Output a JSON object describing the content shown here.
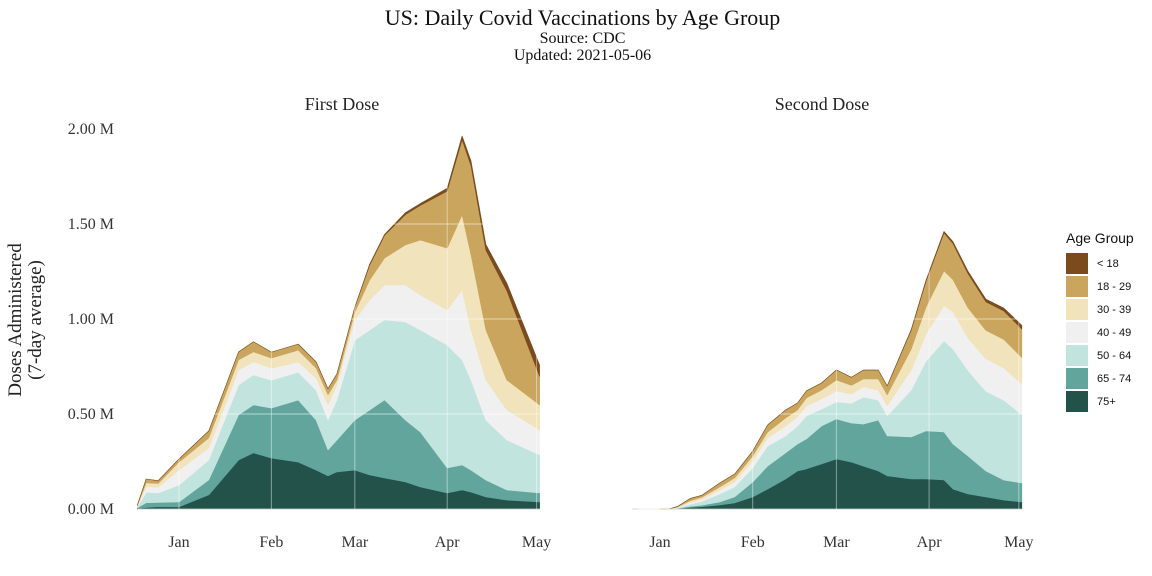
{
  "chart_data": {
    "type": "area",
    "stacked": true,
    "title": "US: Daily Covid Vaccinations by Age Group",
    "subtitle": [
      "Source: CDC",
      "Updated: 2021-05-06"
    ],
    "ylabel": [
      "Doses Administered",
      "(7-day average)"
    ],
    "xlabel": "",
    "ylim": [
      0,
      2000000
    ],
    "yticks": [
      {
        "value": 0,
        "label": "0.00 M"
      },
      {
        "value": 500000,
        "label": "0.50 M"
      },
      {
        "value": 1000000,
        "label": "1.00 M"
      },
      {
        "value": 1500000,
        "label": "1.50 M"
      },
      {
        "value": 2000000,
        "label": "2.00 M"
      }
    ],
    "xticks": [
      {
        "date": "2021-01-01",
        "label": "Jan"
      },
      {
        "date": "2021-02-01",
        "label": "Feb"
      },
      {
        "date": "2021-03-01",
        "label": "Mar"
      },
      {
        "date": "2021-04-01",
        "label": "Apr"
      },
      {
        "date": "2021-05-01",
        "label": "May"
      }
    ],
    "grid": true,
    "legend": {
      "title": "Age Group",
      "position": "right",
      "entries": [
        {
          "name": "< 18",
          "color": "#7b4a1d"
        },
        {
          "name": "18 - 29",
          "color": "#caa55e"
        },
        {
          "name": "30 - 39",
          "color": "#f1e3bc"
        },
        {
          "name": "40 - 49",
          "color": "#f0f0f0"
        },
        {
          "name": "50 - 64",
          "color": "#c2e4df"
        },
        {
          "name": "65 - 74",
          "color": "#62a59d"
        },
        {
          "name": "75+",
          "color": "#23524a"
        }
      ]
    },
    "series_order_bottom_to_top": [
      "75+",
      "65 - 74",
      "50 - 64",
      "40 - 49",
      "30 - 39",
      "18 - 29",
      "< 18"
    ],
    "panels": [
      {
        "title": "First Dose",
        "dates": [
          "2020-12-18",
          "2020-12-21",
          "2020-12-25",
          "2021-01-01",
          "2021-01-11",
          "2021-01-21",
          "2021-01-26",
          "2021-02-01",
          "2021-02-10",
          "2021-02-16",
          "2021-02-20",
          "2021-02-23",
          "2021-03-01",
          "2021-03-06",
          "2021-03-11",
          "2021-03-18",
          "2021-03-23",
          "2021-04-01",
          "2021-04-06",
          "2021-04-09",
          "2021-04-14",
          "2021-04-21",
          "2021-05-02"
        ],
        "series": [
          {
            "name": "75+",
            "values": [
              2000,
              8000,
              12000,
              11000,
              74000,
              258000,
              295000,
              268000,
              247000,
              205000,
              174000,
              195000,
              205000,
              179000,
              163000,
              142000,
              116000,
              84000,
              100000,
              89000,
              63000,
              47000,
              37000
            ]
          },
          {
            "name": "65 - 74",
            "values": [
              4000,
              25000,
              22000,
              26000,
              79000,
              237000,
              253000,
              263000,
              326000,
              263000,
              137000,
              168000,
              263000,
              342000,
              411000,
              326000,
              289000,
              132000,
              132000,
              116000,
              89000,
              53000,
              47000
            ]
          },
          {
            "name": "50 - 64",
            "values": [
              6000,
              55000,
              50000,
              89000,
              105000,
              158000,
              158000,
              147000,
              147000,
              158000,
              158000,
              211000,
              421000,
              421000,
              421000,
              516000,
              537000,
              647000,
              553000,
              474000,
              316000,
              263000,
              200000
            ]
          },
          {
            "name": "40 - 49",
            "values": [
              3000,
              30000,
              30000,
              79000,
              63000,
              79000,
              68000,
              63000,
              53000,
              63000,
              79000,
              79000,
              105000,
              158000,
              184000,
              195000,
              184000,
              184000,
              368000,
              263000,
              211000,
              158000,
              132000
            ]
          },
          {
            "name": "30 - 39",
            "values": [
              2000,
              20000,
              20000,
              42000,
              53000,
              53000,
              53000,
              53000,
              63000,
              53000,
              53000,
              26000,
              42000,
              105000,
              142000,
              211000,
              289000,
              326000,
              395000,
              395000,
              263000,
              158000,
              132000
            ]
          },
          {
            "name": "18 - 29",
            "values": [
              3000,
              20000,
              15000,
              16000,
              37000,
              42000,
              53000,
              32000,
              32000,
              32000,
              32000,
              32000,
              26000,
              79000,
              120000,
              160000,
              183000,
              300000,
              395000,
              470000,
              420000,
              470000,
              150000
            ]
          },
          {
            "name": "< 18",
            "values": [
              0,
              0,
              0,
              0,
              0,
              0,
              0,
              0,
              0,
              0,
              0,
              0,
              0,
              5000,
              5000,
              10000,
              10000,
              15000,
              20000,
              25000,
              30000,
              40000,
              60000
            ]
          }
        ]
      },
      {
        "title": "Second Dose",
        "dates": [
          "2021-01-01",
          "2021-01-04",
          "2021-01-07",
          "2021-01-11",
          "2021-01-15",
          "2021-01-21",
          "2021-01-26",
          "2021-02-01",
          "2021-02-06",
          "2021-02-12",
          "2021-02-16",
          "2021-02-19",
          "2021-02-24",
          "2021-03-01",
          "2021-03-06",
          "2021-03-10",
          "2021-03-15",
          "2021-03-18",
          "2021-03-26",
          "2021-03-31",
          "2021-04-06",
          "2021-04-09",
          "2021-04-14",
          "2021-04-20",
          "2021-04-26",
          "2021-05-02"
        ],
        "series": [
          {
            "name": "75+",
            "values": [
              0,
              0,
              2000,
              8000,
              12000,
              21000,
              32000,
              63000,
              105000,
              158000,
              200000,
              211000,
              237000,
              263000,
              247000,
              226000,
              200000,
              174000,
              158000,
              158000,
              153000,
              105000,
              79000,
              63000,
              47000,
              37000
            ]
          },
          {
            "name": "65 - 74",
            "values": [
              0,
              0,
              2000,
              5000,
              8000,
              16000,
              32000,
              79000,
              121000,
              137000,
              142000,
              158000,
              200000,
              211000,
              205000,
              221000,
              268000,
              211000,
              221000,
              253000,
              253000,
              237000,
              200000,
              137000,
              105000,
              100000
            ]
          },
          {
            "name": "50 - 64",
            "values": [
              0,
              0,
              3000,
              12000,
              20000,
              42000,
              53000,
              74000,
              105000,
              89000,
              95000,
              121000,
              89000,
              89000,
              105000,
              142000,
              105000,
              105000,
              247000,
              368000,
              479000,
              500000,
              450000,
              420000,
              420000,
              360000
            ]
          },
          {
            "name": "40 - 49",
            "values": [
              0,
              0,
              2000,
              8000,
              10000,
              21000,
              26000,
              37000,
              42000,
              53000,
              47000,
              53000,
              53000,
              58000,
              47000,
              53000,
              53000,
              53000,
              105000,
              142000,
              184000,
              195000,
              170000,
              170000,
              170000,
              160000
            ]
          },
          {
            "name": "30 - 39",
            "values": [
              0,
              0,
              2000,
              10000,
              12000,
              16000,
              21000,
              26000,
              32000,
              42000,
              37000,
              42000,
              47000,
              58000,
              47000,
              42000,
              58000,
              58000,
              110000,
              142000,
              184000,
              170000,
              160000,
              150000,
              150000,
              140000
            ]
          },
          {
            "name": "18 - 29",
            "values": [
              0,
              0,
              3000,
              12000,
              10000,
              21000,
              21000,
              26000,
              37000,
              42000,
              37000,
              37000,
              37000,
              53000,
              42000,
              47000,
              47000,
              47000,
              100000,
              137000,
              200000,
              190000,
              180000,
              150000,
              150000,
              150000
            ]
          },
          {
            "name": "< 18",
            "values": [
              0,
              0,
              0,
              0,
              0,
              0,
              0,
              0,
              0,
              0,
              0,
              0,
              0,
              0,
              0,
              0,
              0,
              0,
              3000,
              5000,
              8000,
              10000,
              12000,
              15000,
              15000,
              20000
            ]
          }
        ]
      }
    ]
  }
}
